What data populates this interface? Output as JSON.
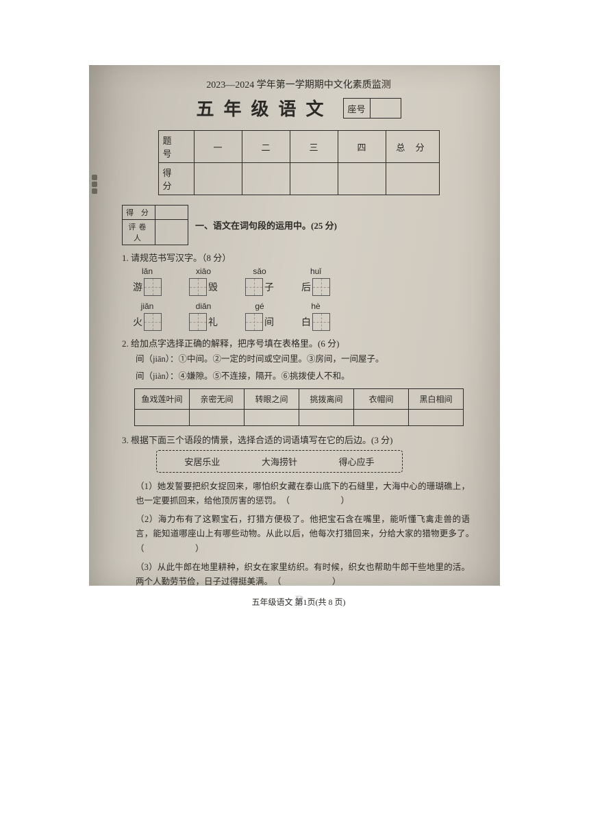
{
  "header": {
    "line": "2023—2024 学年第一学期期中文化素质监测",
    "title": "五年级语文",
    "seat_label": "座号"
  },
  "score_table": {
    "row1_label": "题 号",
    "row2_label": "得 分",
    "cols": [
      "一",
      "二",
      "三",
      "四"
    ],
    "total": "总 分"
  },
  "section1": {
    "mini_r1": "得 分",
    "mini_r2": "评卷人",
    "title": "一、语文在词句段的运用中。(25 分)"
  },
  "q1": {
    "text": "1. 请规范书写汉字。（8 分）",
    "row1": [
      {
        "py": "lǎn",
        "lead": "游"
      },
      {
        "py": "xiāo",
        "trail": "毁"
      },
      {
        "py": "sǎo",
        "trail": "子"
      },
      {
        "py": "huǐ",
        "lead": "后"
      }
    ],
    "row2": [
      {
        "py": "jiǎn",
        "lead": "火"
      },
      {
        "py": "diǎn",
        "trail": "礼"
      },
      {
        "py": "gé",
        "trail": "间"
      },
      {
        "py": "hè",
        "lead": "白"
      }
    ]
  },
  "q2": {
    "text": "2. 给加点字选择正确的解释，把序号填在表格里。(6 分)",
    "def1": "间（jiān）：①中间。②一定的时间或空间里。③房间，一间屋子。",
    "def2": "间（jiàn）：④嫌隙。⑤不连接，隔开。⑥挑拨使人不和。",
    "headers": [
      "鱼戏莲叶间",
      "亲密无间",
      "转眼之间",
      "挑拨离间",
      "衣帽间",
      "黑白相间"
    ]
  },
  "q3": {
    "text": "3. 根据下面三个语段的情景，选择合适的词语填写在它的后边。(3 分)",
    "options": [
      "安居乐业",
      "大海捞针",
      "得心应手"
    ],
    "p1": "（1）她发誓要把织女捉回来，哪怕织女藏在泰山底下的石缝里，大海中心的珊瑚礁上，也一定要抓回来，给他顶厉害的惩罚。",
    "p2": "（2）海力布有了这颗宝石，打猎方便极了。他把宝石含在嘴里，能听懂飞禽走兽的语言，能知道哪座山上有哪些动物。从此以后，他每次打猎回来，分给大家的猎物更多了。",
    "p3": "（3）从此牛郎在地里耕种，织女在家里纺织。有时候，织女也帮助牛郎干些地里的活。两个人勤劳节俭，日子过得挺美满。",
    "blank": "（　　　　　）"
  },
  "footer": {
    "text": "五年级语文 第1页(共 8 页)"
  }
}
